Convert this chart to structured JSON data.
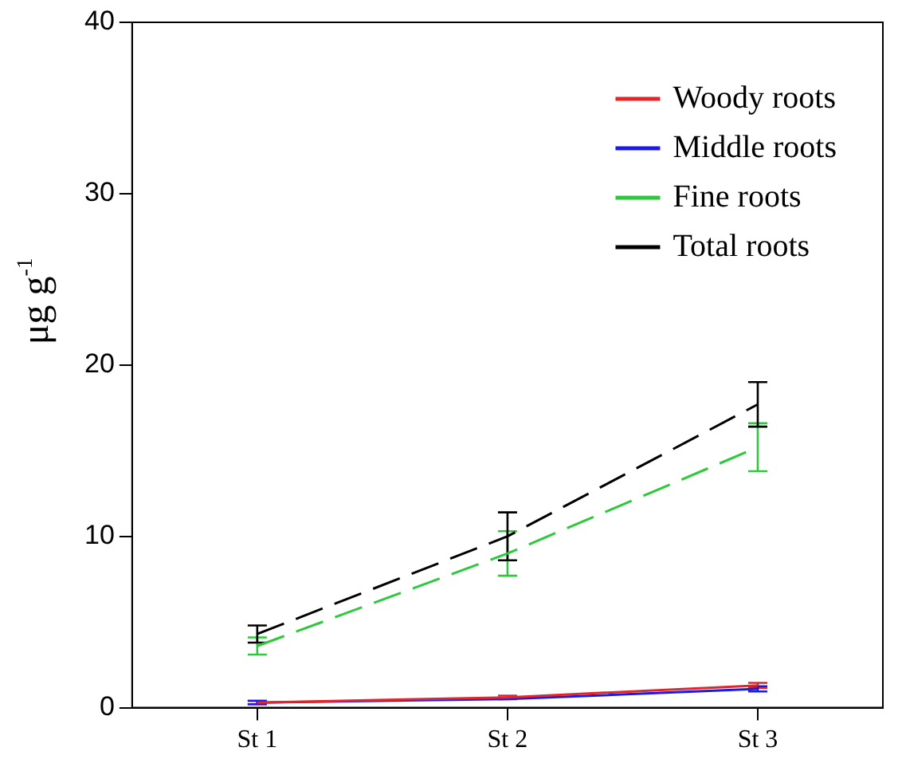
{
  "chart_data": {
    "type": "line",
    "ylabel": "μg g$^{-1}$",
    "categories": [
      "St 1",
      "St 2",
      "St 3"
    ],
    "ylim": [
      0,
      40
    ],
    "yticks": [
      0,
      10,
      20,
      30,
      40
    ],
    "grid": false,
    "legend": "top right",
    "marker": "none",
    "series": [
      {
        "name": "Woody roots",
        "color": "#e0282a",
        "values": [
          0.3,
          0.6,
          1.3
        ],
        "errors": [
          0.1,
          0.1,
          0.15
        ],
        "line_style": "solid"
      },
      {
        "name": "Middle roots",
        "color": "#1a1ae6",
        "values": [
          0.3,
          0.5,
          1.1
        ],
        "errors": [
          0.1,
          null,
          0.15
        ],
        "line_style": "solid"
      },
      {
        "name": "Fine roots",
        "color": "#2ec83c",
        "values": [
          3.6,
          9.0,
          15.2
        ],
        "errors": [
          0.5,
          1.3,
          1.4
        ],
        "line_style": "dashed"
      },
      {
        "name": "Total roots",
        "color": "#000000",
        "values": [
          4.3,
          10.0,
          17.7
        ],
        "errors": [
          0.5,
          1.4,
          1.3
        ],
        "line_style": "dashed"
      }
    ]
  }
}
